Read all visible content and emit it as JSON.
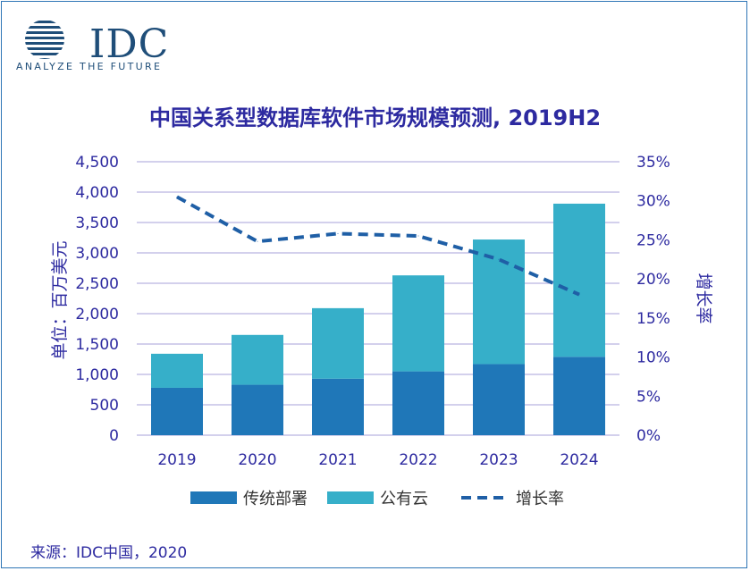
{
  "logo": {
    "brand": "IDC",
    "tagline": "ANALYZE THE FUTURE"
  },
  "title": "中国关系型数据库软件市场规模预测, 2019H2",
  "source": "来源：IDC中国，2020",
  "colors": {
    "traditional": "#1f77b8",
    "cloud": "#36afc9",
    "growth": "#1f5fa6",
    "text": "#2d2aa0",
    "grid": "#b9b3e0"
  },
  "chart_data": {
    "type": "bar",
    "stacked": true,
    "categories": [
      "2019",
      "2020",
      "2021",
      "2022",
      "2023",
      "2024"
    ],
    "series": [
      {
        "name": "传统部署",
        "values": [
          780,
          830,
          930,
          1050,
          1170,
          1290
        ]
      },
      {
        "name": "公有云",
        "values": [
          560,
          820,
          1160,
          1580,
          2050,
          2520
        ]
      }
    ],
    "line_series": {
      "name": "增长率",
      "axis": "right",
      "style": "dashed",
      "values": [
        0.305,
        0.248,
        0.258,
        0.255,
        0.225,
        0.18
      ]
    },
    "ylabel": "单位：百万美元",
    "ylabel_right": "增长率",
    "ylim": [
      0,
      4500
    ],
    "ylim_right": [
      0,
      0.35
    ],
    "yticks": [
      "0",
      "500",
      "1,000",
      "1,500",
      "2,000",
      "2,500",
      "3,000",
      "3,500",
      "4,000",
      "4,500"
    ],
    "yticks_right": [
      "0%",
      "5%",
      "10%",
      "15%",
      "20%",
      "25%",
      "30%",
      "35%"
    ],
    "legend": [
      "传统部署",
      "公有云",
      "增长率"
    ],
    "legend_position": "bottom",
    "grid": true
  }
}
